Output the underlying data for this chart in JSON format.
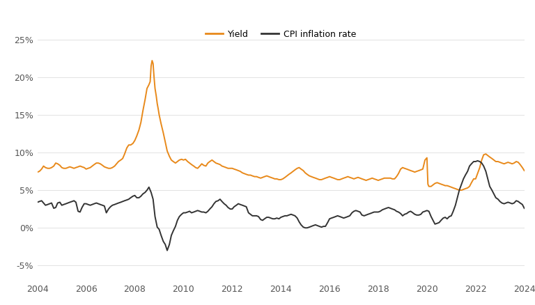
{
  "yield_color": "#E8891A",
  "cpi_color": "#333333",
  "background_color": "#FFFFFF",
  "grid_color": "#DDDDDD",
  "ylim": [
    -0.07,
    0.27
  ],
  "yticks": [
    -0.05,
    0.0,
    0.05,
    0.1,
    0.15,
    0.2,
    0.25
  ],
  "ytick_labels": [
    "-5%",
    "0%",
    "5%",
    "10%",
    "15%",
    "20%",
    "25%"
  ],
  "xtick_years": [
    2004,
    2006,
    2008,
    2010,
    2012,
    2014,
    2016,
    2018,
    2020,
    2022,
    2024
  ],
  "legend_labels": [
    "Yield",
    "CPI inflation rate"
  ],
  "yield_data": [
    [
      2004.0,
      0.074
    ],
    [
      2004.08,
      0.075
    ],
    [
      2004.17,
      0.078
    ],
    [
      2004.25,
      0.082
    ],
    [
      2004.33,
      0.08
    ],
    [
      2004.42,
      0.079
    ],
    [
      2004.5,
      0.079
    ],
    [
      2004.58,
      0.08
    ],
    [
      2004.67,
      0.082
    ],
    [
      2004.75,
      0.086
    ],
    [
      2004.83,
      0.085
    ],
    [
      2004.92,
      0.083
    ],
    [
      2005.0,
      0.08
    ],
    [
      2005.08,
      0.079
    ],
    [
      2005.17,
      0.079
    ],
    [
      2005.25,
      0.08
    ],
    [
      2005.33,
      0.081
    ],
    [
      2005.42,
      0.08
    ],
    [
      2005.5,
      0.079
    ],
    [
      2005.58,
      0.08
    ],
    [
      2005.67,
      0.081
    ],
    [
      2005.75,
      0.082
    ],
    [
      2005.83,
      0.081
    ],
    [
      2005.92,
      0.08
    ],
    [
      2006.0,
      0.078
    ],
    [
      2006.08,
      0.079
    ],
    [
      2006.17,
      0.08
    ],
    [
      2006.25,
      0.082
    ],
    [
      2006.33,
      0.084
    ],
    [
      2006.42,
      0.086
    ],
    [
      2006.5,
      0.086
    ],
    [
      2006.58,
      0.085
    ],
    [
      2006.67,
      0.083
    ],
    [
      2006.75,
      0.081
    ],
    [
      2006.83,
      0.08
    ],
    [
      2006.92,
      0.079
    ],
    [
      2007.0,
      0.079
    ],
    [
      2007.08,
      0.08
    ],
    [
      2007.17,
      0.082
    ],
    [
      2007.25,
      0.085
    ],
    [
      2007.33,
      0.088
    ],
    [
      2007.42,
      0.09
    ],
    [
      2007.5,
      0.092
    ],
    [
      2007.58,
      0.098
    ],
    [
      2007.67,
      0.106
    ],
    [
      2007.75,
      0.11
    ],
    [
      2007.83,
      0.11
    ],
    [
      2007.92,
      0.112
    ],
    [
      2008.0,
      0.116
    ],
    [
      2008.08,
      0.122
    ],
    [
      2008.17,
      0.13
    ],
    [
      2008.25,
      0.14
    ],
    [
      2008.33,
      0.155
    ],
    [
      2008.42,
      0.17
    ],
    [
      2008.5,
      0.185
    ],
    [
      2008.58,
      0.19
    ],
    [
      2008.63,
      0.194
    ],
    [
      2008.67,
      0.215
    ],
    [
      2008.71,
      0.222
    ],
    [
      2008.75,
      0.218
    ],
    [
      2008.79,
      0.2
    ],
    [
      2008.83,
      0.185
    ],
    [
      2008.88,
      0.175
    ],
    [
      2008.92,
      0.165
    ],
    [
      2008.96,
      0.158
    ],
    [
      2009.0,
      0.15
    ],
    [
      2009.08,
      0.138
    ],
    [
      2009.17,
      0.126
    ],
    [
      2009.25,
      0.114
    ],
    [
      2009.33,
      0.102
    ],
    [
      2009.42,
      0.095
    ],
    [
      2009.5,
      0.09
    ],
    [
      2009.58,
      0.088
    ],
    [
      2009.67,
      0.086
    ],
    [
      2009.75,
      0.088
    ],
    [
      2009.83,
      0.09
    ],
    [
      2009.92,
      0.091
    ],
    [
      2010.0,
      0.09
    ],
    [
      2010.08,
      0.091
    ],
    [
      2010.17,
      0.088
    ],
    [
      2010.25,
      0.086
    ],
    [
      2010.33,
      0.084
    ],
    [
      2010.42,
      0.082
    ],
    [
      2010.5,
      0.08
    ],
    [
      2010.58,
      0.079
    ],
    [
      2010.67,
      0.082
    ],
    [
      2010.75,
      0.085
    ],
    [
      2010.83,
      0.083
    ],
    [
      2010.92,
      0.082
    ],
    [
      2011.0,
      0.086
    ],
    [
      2011.08,
      0.088
    ],
    [
      2011.17,
      0.09
    ],
    [
      2011.25,
      0.088
    ],
    [
      2011.33,
      0.086
    ],
    [
      2011.42,
      0.085
    ],
    [
      2011.5,
      0.084
    ],
    [
      2011.58,
      0.082
    ],
    [
      2011.67,
      0.081
    ],
    [
      2011.75,
      0.08
    ],
    [
      2011.83,
      0.079
    ],
    [
      2011.92,
      0.079
    ],
    [
      2012.0,
      0.079
    ],
    [
      2012.08,
      0.078
    ],
    [
      2012.17,
      0.077
    ],
    [
      2012.25,
      0.076
    ],
    [
      2012.33,
      0.075
    ],
    [
      2012.42,
      0.073
    ],
    [
      2012.5,
      0.072
    ],
    [
      2012.58,
      0.071
    ],
    [
      2012.67,
      0.07
    ],
    [
      2012.75,
      0.07
    ],
    [
      2012.83,
      0.069
    ],
    [
      2012.92,
      0.068
    ],
    [
      2013.0,
      0.068
    ],
    [
      2013.08,
      0.067
    ],
    [
      2013.17,
      0.066
    ],
    [
      2013.25,
      0.067
    ],
    [
      2013.33,
      0.068
    ],
    [
      2013.42,
      0.069
    ],
    [
      2013.5,
      0.068
    ],
    [
      2013.58,
      0.067
    ],
    [
      2013.67,
      0.066
    ],
    [
      2013.75,
      0.065
    ],
    [
      2013.83,
      0.065
    ],
    [
      2013.92,
      0.064
    ],
    [
      2014.0,
      0.064
    ],
    [
      2014.08,
      0.065
    ],
    [
      2014.17,
      0.067
    ],
    [
      2014.25,
      0.069
    ],
    [
      2014.33,
      0.071
    ],
    [
      2014.42,
      0.073
    ],
    [
      2014.5,
      0.075
    ],
    [
      2014.58,
      0.077
    ],
    [
      2014.67,
      0.079
    ],
    [
      2014.75,
      0.08
    ],
    [
      2014.83,
      0.078
    ],
    [
      2014.92,
      0.076
    ],
    [
      2015.0,
      0.073
    ],
    [
      2015.08,
      0.071
    ],
    [
      2015.17,
      0.069
    ],
    [
      2015.25,
      0.068
    ],
    [
      2015.33,
      0.067
    ],
    [
      2015.42,
      0.066
    ],
    [
      2015.5,
      0.065
    ],
    [
      2015.58,
      0.064
    ],
    [
      2015.67,
      0.064
    ],
    [
      2015.75,
      0.065
    ],
    [
      2015.83,
      0.066
    ],
    [
      2015.92,
      0.067
    ],
    [
      2016.0,
      0.068
    ],
    [
      2016.08,
      0.067
    ],
    [
      2016.17,
      0.066
    ],
    [
      2016.25,
      0.065
    ],
    [
      2016.33,
      0.064
    ],
    [
      2016.42,
      0.064
    ],
    [
      2016.5,
      0.065
    ],
    [
      2016.58,
      0.066
    ],
    [
      2016.67,
      0.067
    ],
    [
      2016.75,
      0.068
    ],
    [
      2016.83,
      0.067
    ],
    [
      2016.92,
      0.066
    ],
    [
      2017.0,
      0.065
    ],
    [
      2017.08,
      0.066
    ],
    [
      2017.17,
      0.067
    ],
    [
      2017.25,
      0.066
    ],
    [
      2017.33,
      0.065
    ],
    [
      2017.42,
      0.064
    ],
    [
      2017.5,
      0.063
    ],
    [
      2017.58,
      0.064
    ],
    [
      2017.67,
      0.065
    ],
    [
      2017.75,
      0.066
    ],
    [
      2017.83,
      0.065
    ],
    [
      2017.92,
      0.064
    ],
    [
      2018.0,
      0.063
    ],
    [
      2018.08,
      0.064
    ],
    [
      2018.17,
      0.065
    ],
    [
      2018.25,
      0.066
    ],
    [
      2018.33,
      0.066
    ],
    [
      2018.42,
      0.066
    ],
    [
      2018.5,
      0.066
    ],
    [
      2018.58,
      0.065
    ],
    [
      2018.67,
      0.065
    ],
    [
      2018.75,
      0.068
    ],
    [
      2018.83,
      0.072
    ],
    [
      2018.92,
      0.078
    ],
    [
      2019.0,
      0.08
    ],
    [
      2019.08,
      0.079
    ],
    [
      2019.17,
      0.078
    ],
    [
      2019.25,
      0.077
    ],
    [
      2019.33,
      0.076
    ],
    [
      2019.42,
      0.075
    ],
    [
      2019.5,
      0.074
    ],
    [
      2019.58,
      0.075
    ],
    [
      2019.67,
      0.076
    ],
    [
      2019.75,
      0.077
    ],
    [
      2019.83,
      0.078
    ],
    [
      2019.92,
      0.09
    ],
    [
      2020.0,
      0.093
    ],
    [
      2020.04,
      0.058
    ],
    [
      2020.08,
      0.055
    ],
    [
      2020.17,
      0.055
    ],
    [
      2020.25,
      0.057
    ],
    [
      2020.33,
      0.059
    ],
    [
      2020.42,
      0.06
    ],
    [
      2020.5,
      0.059
    ],
    [
      2020.58,
      0.058
    ],
    [
      2020.67,
      0.057
    ],
    [
      2020.75,
      0.056
    ],
    [
      2020.83,
      0.056
    ],
    [
      2020.92,
      0.055
    ],
    [
      2021.0,
      0.054
    ],
    [
      2021.08,
      0.053
    ],
    [
      2021.17,
      0.052
    ],
    [
      2021.25,
      0.051
    ],
    [
      2021.33,
      0.05
    ],
    [
      2021.42,
      0.05
    ],
    [
      2021.5,
      0.051
    ],
    [
      2021.58,
      0.052
    ],
    [
      2021.67,
      0.053
    ],
    [
      2021.75,
      0.055
    ],
    [
      2021.83,
      0.06
    ],
    [
      2021.92,
      0.065
    ],
    [
      2022.0,
      0.065
    ],
    [
      2022.08,
      0.072
    ],
    [
      2022.17,
      0.08
    ],
    [
      2022.25,
      0.09
    ],
    [
      2022.33,
      0.097
    ],
    [
      2022.42,
      0.098
    ],
    [
      2022.5,
      0.096
    ],
    [
      2022.58,
      0.094
    ],
    [
      2022.67,
      0.092
    ],
    [
      2022.75,
      0.09
    ],
    [
      2022.83,
      0.088
    ],
    [
      2022.92,
      0.088
    ],
    [
      2023.0,
      0.087
    ],
    [
      2023.08,
      0.086
    ],
    [
      2023.17,
      0.085
    ],
    [
      2023.25,
      0.086
    ],
    [
      2023.33,
      0.087
    ],
    [
      2023.42,
      0.086
    ],
    [
      2023.5,
      0.085
    ],
    [
      2023.58,
      0.086
    ],
    [
      2023.67,
      0.088
    ],
    [
      2023.75,
      0.087
    ],
    [
      2023.83,
      0.084
    ],
    [
      2023.92,
      0.08
    ],
    [
      2024.0,
      0.076
    ]
  ],
  "cpi_data": [
    [
      2004.0,
      0.034
    ],
    [
      2004.08,
      0.035
    ],
    [
      2004.17,
      0.036
    ],
    [
      2004.25,
      0.033
    ],
    [
      2004.33,
      0.03
    ],
    [
      2004.42,
      0.031
    ],
    [
      2004.5,
      0.032
    ],
    [
      2004.58,
      0.033
    ],
    [
      2004.67,
      0.026
    ],
    [
      2004.75,
      0.027
    ],
    [
      2004.83,
      0.033
    ],
    [
      2004.92,
      0.034
    ],
    [
      2005.0,
      0.03
    ],
    [
      2005.08,
      0.031
    ],
    [
      2005.17,
      0.032
    ],
    [
      2005.25,
      0.033
    ],
    [
      2005.33,
      0.034
    ],
    [
      2005.42,
      0.035
    ],
    [
      2005.5,
      0.036
    ],
    [
      2005.58,
      0.034
    ],
    [
      2005.67,
      0.022
    ],
    [
      2005.75,
      0.021
    ],
    [
      2005.83,
      0.027
    ],
    [
      2005.92,
      0.032
    ],
    [
      2006.0,
      0.032
    ],
    [
      2006.08,
      0.031
    ],
    [
      2006.17,
      0.03
    ],
    [
      2006.25,
      0.031
    ],
    [
      2006.33,
      0.032
    ],
    [
      2006.42,
      0.033
    ],
    [
      2006.5,
      0.032
    ],
    [
      2006.58,
      0.031
    ],
    [
      2006.67,
      0.03
    ],
    [
      2006.75,
      0.029
    ],
    [
      2006.83,
      0.02
    ],
    [
      2006.92,
      0.025
    ],
    [
      2007.0,
      0.028
    ],
    [
      2007.08,
      0.03
    ],
    [
      2007.17,
      0.031
    ],
    [
      2007.25,
      0.032
    ],
    [
      2007.33,
      0.033
    ],
    [
      2007.42,
      0.034
    ],
    [
      2007.5,
      0.035
    ],
    [
      2007.58,
      0.036
    ],
    [
      2007.67,
      0.037
    ],
    [
      2007.75,
      0.038
    ],
    [
      2007.83,
      0.04
    ],
    [
      2007.92,
      0.042
    ],
    [
      2008.0,
      0.043
    ],
    [
      2008.08,
      0.04
    ],
    [
      2008.17,
      0.04
    ],
    [
      2008.25,
      0.042
    ],
    [
      2008.33,
      0.045
    ],
    [
      2008.42,
      0.047
    ],
    [
      2008.5,
      0.05
    ],
    [
      2008.58,
      0.054
    ],
    [
      2008.67,
      0.047
    ],
    [
      2008.75,
      0.038
    ],
    [
      2008.83,
      0.015
    ],
    [
      2008.92,
      0.001
    ],
    [
      2009.0,
      -0.002
    ],
    [
      2009.08,
      -0.01
    ],
    [
      2009.17,
      -0.018
    ],
    [
      2009.25,
      -0.022
    ],
    [
      2009.33,
      -0.03
    ],
    [
      2009.42,
      -0.022
    ],
    [
      2009.5,
      -0.01
    ],
    [
      2009.58,
      -0.004
    ],
    [
      2009.67,
      0.002
    ],
    [
      2009.75,
      0.01
    ],
    [
      2009.83,
      0.015
    ],
    [
      2009.92,
      0.018
    ],
    [
      2010.0,
      0.02
    ],
    [
      2010.08,
      0.02
    ],
    [
      2010.17,
      0.021
    ],
    [
      2010.25,
      0.022
    ],
    [
      2010.33,
      0.02
    ],
    [
      2010.42,
      0.021
    ],
    [
      2010.5,
      0.022
    ],
    [
      2010.58,
      0.023
    ],
    [
      2010.67,
      0.022
    ],
    [
      2010.75,
      0.021
    ],
    [
      2010.83,
      0.021
    ],
    [
      2010.92,
      0.02
    ],
    [
      2011.0,
      0.022
    ],
    [
      2011.08,
      0.025
    ],
    [
      2011.17,
      0.028
    ],
    [
      2011.25,
      0.032
    ],
    [
      2011.33,
      0.035
    ],
    [
      2011.42,
      0.036
    ],
    [
      2011.5,
      0.038
    ],
    [
      2011.58,
      0.035
    ],
    [
      2011.67,
      0.032
    ],
    [
      2011.75,
      0.03
    ],
    [
      2011.83,
      0.027
    ],
    [
      2011.92,
      0.025
    ],
    [
      2012.0,
      0.025
    ],
    [
      2012.08,
      0.028
    ],
    [
      2012.17,
      0.03
    ],
    [
      2012.25,
      0.032
    ],
    [
      2012.33,
      0.031
    ],
    [
      2012.42,
      0.03
    ],
    [
      2012.5,
      0.029
    ],
    [
      2012.58,
      0.028
    ],
    [
      2012.67,
      0.02
    ],
    [
      2012.75,
      0.018
    ],
    [
      2012.83,
      0.016
    ],
    [
      2012.92,
      0.016
    ],
    [
      2013.0,
      0.016
    ],
    [
      2013.08,
      0.015
    ],
    [
      2013.17,
      0.011
    ],
    [
      2013.25,
      0.01
    ],
    [
      2013.33,
      0.012
    ],
    [
      2013.42,
      0.014
    ],
    [
      2013.5,
      0.014
    ],
    [
      2013.58,
      0.013
    ],
    [
      2013.67,
      0.012
    ],
    [
      2013.75,
      0.012
    ],
    [
      2013.83,
      0.013
    ],
    [
      2013.92,
      0.012
    ],
    [
      2014.0,
      0.014
    ],
    [
      2014.08,
      0.015
    ],
    [
      2014.17,
      0.016
    ],
    [
      2014.25,
      0.016
    ],
    [
      2014.33,
      0.017
    ],
    [
      2014.42,
      0.018
    ],
    [
      2014.5,
      0.017
    ],
    [
      2014.58,
      0.016
    ],
    [
      2014.67,
      0.013
    ],
    [
      2014.75,
      0.008
    ],
    [
      2014.83,
      0.004
    ],
    [
      2014.92,
      0.001
    ],
    [
      2015.0,
      0.0
    ],
    [
      2015.08,
      0.0
    ],
    [
      2015.17,
      0.001
    ],
    [
      2015.25,
      0.002
    ],
    [
      2015.33,
      0.003
    ],
    [
      2015.42,
      0.004
    ],
    [
      2015.5,
      0.003
    ],
    [
      2015.58,
      0.002
    ],
    [
      2015.67,
      0.001
    ],
    [
      2015.75,
      0.002
    ],
    [
      2015.83,
      0.002
    ],
    [
      2015.92,
      0.007
    ],
    [
      2016.0,
      0.012
    ],
    [
      2016.08,
      0.013
    ],
    [
      2016.17,
      0.014
    ],
    [
      2016.25,
      0.015
    ],
    [
      2016.33,
      0.016
    ],
    [
      2016.42,
      0.015
    ],
    [
      2016.5,
      0.014
    ],
    [
      2016.58,
      0.013
    ],
    [
      2016.67,
      0.014
    ],
    [
      2016.75,
      0.015
    ],
    [
      2016.83,
      0.016
    ],
    [
      2016.92,
      0.02
    ],
    [
      2017.0,
      0.022
    ],
    [
      2017.08,
      0.023
    ],
    [
      2017.17,
      0.022
    ],
    [
      2017.25,
      0.021
    ],
    [
      2017.33,
      0.017
    ],
    [
      2017.42,
      0.016
    ],
    [
      2017.5,
      0.017
    ],
    [
      2017.58,
      0.018
    ],
    [
      2017.67,
      0.019
    ],
    [
      2017.75,
      0.02
    ],
    [
      2017.83,
      0.021
    ],
    [
      2017.92,
      0.021
    ],
    [
      2018.0,
      0.021
    ],
    [
      2018.08,
      0.022
    ],
    [
      2018.17,
      0.024
    ],
    [
      2018.25,
      0.025
    ],
    [
      2018.33,
      0.026
    ],
    [
      2018.42,
      0.027
    ],
    [
      2018.5,
      0.026
    ],
    [
      2018.58,
      0.025
    ],
    [
      2018.67,
      0.024
    ],
    [
      2018.75,
      0.022
    ],
    [
      2018.83,
      0.021
    ],
    [
      2018.92,
      0.019
    ],
    [
      2019.0,
      0.016
    ],
    [
      2019.08,
      0.018
    ],
    [
      2019.17,
      0.019
    ],
    [
      2019.25,
      0.021
    ],
    [
      2019.33,
      0.022
    ],
    [
      2019.42,
      0.02
    ],
    [
      2019.5,
      0.018
    ],
    [
      2019.58,
      0.017
    ],
    [
      2019.67,
      0.017
    ],
    [
      2019.75,
      0.018
    ],
    [
      2019.83,
      0.021
    ],
    [
      2019.92,
      0.022
    ],
    [
      2020.0,
      0.023
    ],
    [
      2020.08,
      0.022
    ],
    [
      2020.17,
      0.015
    ],
    [
      2020.25,
      0.01
    ],
    [
      2020.33,
      0.005
    ],
    [
      2020.42,
      0.006
    ],
    [
      2020.5,
      0.007
    ],
    [
      2020.58,
      0.01
    ],
    [
      2020.67,
      0.013
    ],
    [
      2020.75,
      0.014
    ],
    [
      2020.83,
      0.012
    ],
    [
      2020.92,
      0.015
    ],
    [
      2021.0,
      0.016
    ],
    [
      2021.08,
      0.022
    ],
    [
      2021.17,
      0.03
    ],
    [
      2021.25,
      0.04
    ],
    [
      2021.33,
      0.05
    ],
    [
      2021.42,
      0.058
    ],
    [
      2021.5,
      0.065
    ],
    [
      2021.58,
      0.07
    ],
    [
      2021.67,
      0.075
    ],
    [
      2021.75,
      0.082
    ],
    [
      2021.83,
      0.085
    ],
    [
      2021.92,
      0.088
    ],
    [
      2022.0,
      0.088
    ],
    [
      2022.08,
      0.089
    ],
    [
      2022.17,
      0.088
    ],
    [
      2022.25,
      0.086
    ],
    [
      2022.33,
      0.082
    ],
    [
      2022.42,
      0.075
    ],
    [
      2022.5,
      0.065
    ],
    [
      2022.58,
      0.055
    ],
    [
      2022.67,
      0.05
    ],
    [
      2022.75,
      0.045
    ],
    [
      2022.83,
      0.04
    ],
    [
      2022.92,
      0.038
    ],
    [
      2023.0,
      0.035
    ],
    [
      2023.08,
      0.033
    ],
    [
      2023.17,
      0.032
    ],
    [
      2023.25,
      0.033
    ],
    [
      2023.33,
      0.034
    ],
    [
      2023.42,
      0.033
    ],
    [
      2023.5,
      0.032
    ],
    [
      2023.58,
      0.033
    ],
    [
      2023.67,
      0.036
    ],
    [
      2023.75,
      0.035
    ],
    [
      2023.83,
      0.033
    ],
    [
      2023.92,
      0.031
    ],
    [
      2024.0,
      0.026
    ]
  ]
}
